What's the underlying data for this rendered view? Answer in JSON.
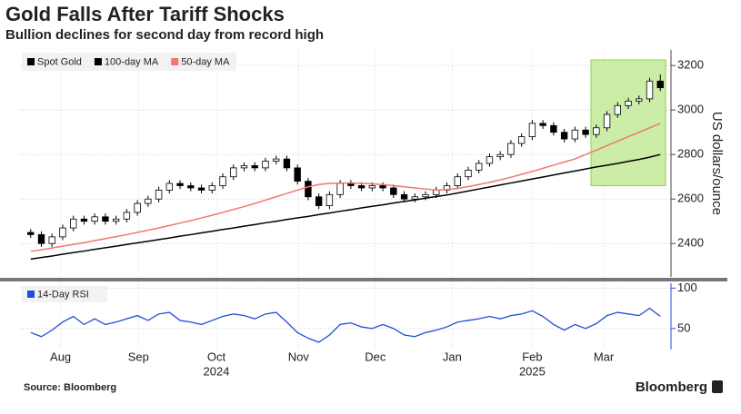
{
  "chart_data": {
    "type": "candlestick",
    "title": "Gold Falls After Tariff Shocks",
    "subtitle": "Bullion declines for second day from record high",
    "source": "Source: Bloomberg",
    "brand": "Bloomberg",
    "y_label": "US dollars/ounce",
    "categories": [
      null,
      null,
      null,
      null,
      null,
      null,
      null,
      null,
      null,
      null,
      null,
      null,
      null,
      null,
      null,
      null,
      null,
      null,
      null,
      null,
      null,
      null,
      null,
      null,
      null,
      null,
      null,
      null,
      null,
      null,
      null,
      null,
      null,
      null,
      null,
      null,
      null,
      null,
      null,
      null,
      null,
      null,
      null,
      null,
      null,
      null,
      null,
      null,
      null,
      null,
      null,
      null,
      null,
      null,
      null,
      null,
      null,
      null,
      null,
      null
    ],
    "xlim": [
      -1,
      60
    ],
    "xticks": [
      {
        "value": 2.8,
        "label": "Aug"
      },
      {
        "value": 10.1,
        "label": "Sep"
      },
      {
        "value": 17.4,
        "label": "Oct"
      },
      {
        "value": 25.1,
        "label": "Nov"
      },
      {
        "value": 32.3,
        "label": "Dec"
      },
      {
        "value": 39.5,
        "label": "Jan"
      },
      {
        "value": 47,
        "label": "Feb"
      },
      {
        "value": 53.7,
        "label": "Mar"
      }
    ],
    "year_ticks": [
      {
        "value": 17.4,
        "label": "2024"
      },
      {
        "value": 47,
        "label": "2025"
      }
    ],
    "ylim": [
      2250,
      3270
    ],
    "yticks": [
      2400,
      2600,
      2800,
      3000,
      3200
    ],
    "grid": true,
    "legend": "top-left",
    "highlight": {
      "xlim": [
        52.5,
        59.5
      ],
      "ylim": [
        2660,
        3225
      ],
      "color": "#bfe98f"
    },
    "series": [
      {
        "name": "Spot Gold",
        "color": "#000000",
        "open": [
          2450,
          2440,
          2400,
          2430,
          2470,
          2510,
          2500,
          2520,
          2500,
          2510,
          2540,
          2580,
          2600,
          2640,
          2670,
          2660,
          2650,
          2640,
          2660,
          2700,
          2740,
          2750,
          2740,
          2770,
          2780,
          2740,
          2680,
          2610,
          2570,
          2620,
          2670,
          2660,
          2650,
          2660,
          2650,
          2620,
          2600,
          2610,
          2620,
          2640,
          2660,
          2700,
          2730,
          2760,
          2790,
          2800,
          2850,
          2880,
          2940,
          2930,
          2900,
          2870,
          2910,
          2890,
          2920,
          2980,
          3020,
          3040,
          3050,
          3130
        ],
        "high": [
          2465,
          2455,
          2445,
          2485,
          2525,
          2525,
          2535,
          2535,
          2525,
          2555,
          2595,
          2615,
          2655,
          2685,
          2685,
          2675,
          2665,
          2675,
          2715,
          2755,
          2765,
          2765,
          2785,
          2795,
          2795,
          2755,
          2695,
          2625,
          2635,
          2685,
          2685,
          2675,
          2675,
          2675,
          2665,
          2635,
          2625,
          2635,
          2655,
          2675,
          2715,
          2745,
          2775,
          2805,
          2815,
          2865,
          2895,
          2955,
          2955,
          2945,
          2915,
          2925,
          2925,
          2935,
          2995,
          3035,
          3055,
          3065,
          3145,
          3160
        ],
        "low": [
          2425,
          2385,
          2385,
          2415,
          2455,
          2485,
          2485,
          2485,
          2485,
          2495,
          2525,
          2565,
          2585,
          2625,
          2645,
          2635,
          2625,
          2625,
          2645,
          2685,
          2725,
          2725,
          2725,
          2755,
          2725,
          2665,
          2595,
          2555,
          2555,
          2605,
          2645,
          2635,
          2635,
          2635,
          2605,
          2585,
          2585,
          2595,
          2605,
          2625,
          2645,
          2685,
          2715,
          2745,
          2775,
          2785,
          2835,
          2865,
          2915,
          2885,
          2855,
          2855,
          2875,
          2875,
          2905,
          2965,
          3005,
          3025,
          3035,
          3085
        ],
        "close": [
          2440,
          2400,
          2430,
          2470,
          2510,
          2500,
          2520,
          2500,
          2510,
          2540,
          2580,
          2600,
          2640,
          2670,
          2660,
          2650,
          2640,
          2660,
          2700,
          2740,
          2750,
          2740,
          2770,
          2780,
          2740,
          2680,
          2610,
          2570,
          2620,
          2670,
          2660,
          2650,
          2660,
          2650,
          2620,
          2600,
          2610,
          2620,
          2640,
          2660,
          2700,
          2730,
          2760,
          2790,
          2800,
          2850,
          2880,
          2940,
          2930,
          2900,
          2870,
          2910,
          2890,
          2920,
          2980,
          3020,
          3040,
          3050,
          3130,
          3100
        ]
      },
      {
        "name": "100-day MA",
        "color": "#000000",
        "values": [
          2330,
          2337,
          2344,
          2352,
          2359,
          2366,
          2374,
          2381,
          2388,
          2396,
          2403,
          2410,
          2418,
          2425,
          2433,
          2440,
          2448,
          2455,
          2463,
          2470,
          2478,
          2485,
          2493,
          2500,
          2508,
          2515,
          2522,
          2530,
          2537,
          2545,
          2552,
          2560,
          2567,
          2574,
          2582,
          2589,
          2596,
          2604,
          2611,
          2618,
          2627,
          2636,
          2645,
          2654,
          2663,
          2672,
          2681,
          2690,
          2699,
          2708,
          2717,
          2726,
          2735,
          2744,
          2752,
          2760,
          2769,
          2778,
          2788,
          2800
        ]
      },
      {
        "name": "50-day MA",
        "color": "#f4766e",
        "values": [
          2365,
          2372,
          2380,
          2388,
          2396,
          2404,
          2413,
          2422,
          2431,
          2440,
          2450,
          2460,
          2470,
          2481,
          2492,
          2503,
          2515,
          2527,
          2540,
          2553,
          2566,
          2580,
          2595,
          2610,
          2625,
          2640,
          2655,
          2665,
          2670,
          2672,
          2672,
          2670,
          2668,
          2665,
          2660,
          2655,
          2650,
          2645,
          2640,
          2642,
          2648,
          2656,
          2665,
          2675,
          2686,
          2698,
          2711,
          2724,
          2738,
          2752,
          2766,
          2780,
          2800,
          2820,
          2840,
          2860,
          2880,
          2900,
          2920,
          2940
        ]
      }
    ],
    "rsi": {
      "name": "14-Day RSI",
      "color": "#1f4fd8",
      "ylim": [
        24,
        106
      ],
      "yticks": [
        50,
        100
      ],
      "values": [
        45,
        40,
        48,
        58,
        65,
        55,
        62,
        55,
        58,
        62,
        66,
        60,
        68,
        70,
        60,
        58,
        55,
        60,
        65,
        68,
        66,
        62,
        68,
        70,
        58,
        45,
        38,
        33,
        42,
        55,
        57,
        52,
        50,
        55,
        50,
        42,
        40,
        45,
        48,
        52,
        58,
        60,
        62,
        65,
        62,
        66,
        68,
        72,
        65,
        55,
        48,
        55,
        50,
        56,
        66,
        70,
        68,
        66,
        75,
        65
      ]
    }
  }
}
